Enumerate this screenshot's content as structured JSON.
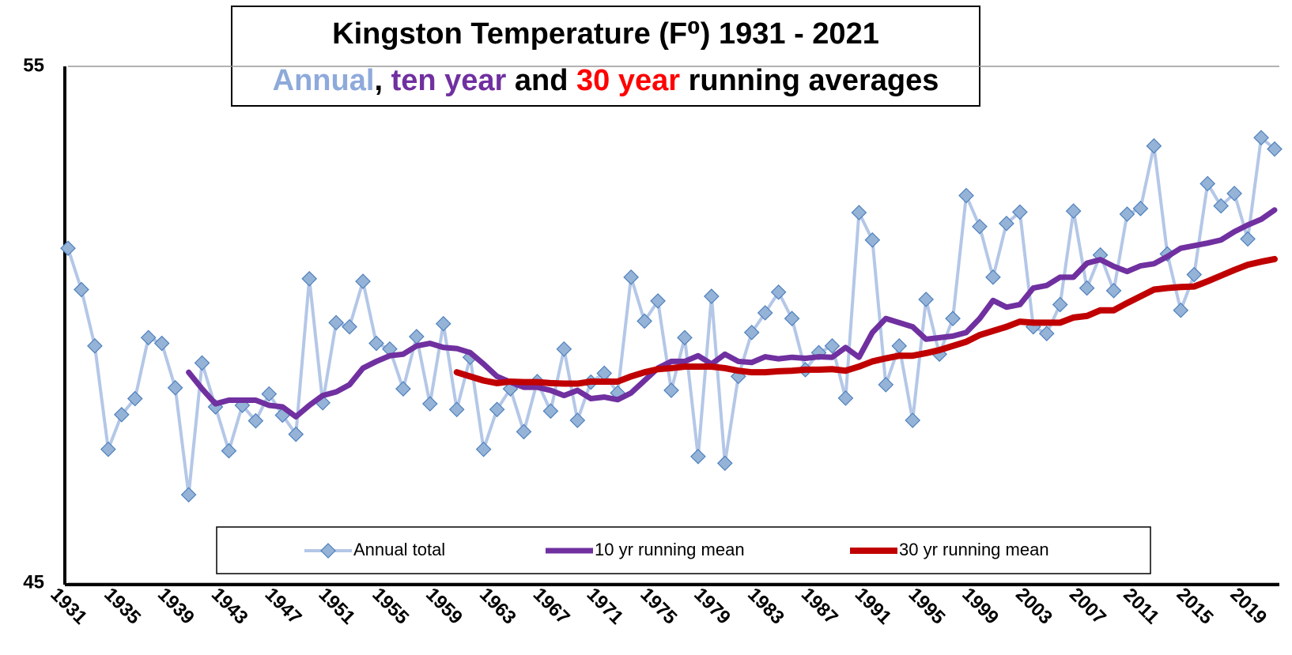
{
  "chart_data": {
    "type": "line",
    "title": "Kingston Temperature (F⁰) 1931 - 2021",
    "subtitle_parts": [
      {
        "text": "Annual",
        "color": "#8eaadb"
      },
      {
        "text": ", ",
        "color": "#000000"
      },
      {
        "text": "ten year",
        "color": "#7030a0"
      },
      {
        "text": " and ",
        "color": "#000000"
      },
      {
        "text": "30 year",
        "color": "#ff0000"
      },
      {
        "text": " running averages",
        "color": "#000000"
      }
    ],
    "x": [
      1931,
      1932,
      1933,
      1934,
      1935,
      1936,
      1937,
      1938,
      1939,
      1940,
      1941,
      1942,
      1943,
      1944,
      1945,
      1946,
      1947,
      1948,
      1949,
      1950,
      1951,
      1952,
      1953,
      1954,
      1955,
      1956,
      1957,
      1958,
      1959,
      1960,
      1961,
      1962,
      1963,
      1964,
      1965,
      1966,
      1967,
      1968,
      1969,
      1970,
      1971,
      1972,
      1973,
      1974,
      1975,
      1976,
      1977,
      1978,
      1979,
      1980,
      1981,
      1982,
      1983,
      1984,
      1985,
      1986,
      1987,
      1988,
      1989,
      1990,
      1991,
      1992,
      1993,
      1994,
      1995,
      1996,
      1997,
      1998,
      1999,
      2000,
      2001,
      2002,
      2003,
      2004,
      2005,
      2006,
      2007,
      2008,
      2009,
      2010,
      2011,
      2012,
      2013,
      2014,
      2015,
      2016,
      2017,
      2018,
      2019,
      2020,
      2021
    ],
    "xlim": [
      1931,
      2021
    ],
    "xticks": [
      1931,
      1935,
      1939,
      1943,
      1947,
      1951,
      1955,
      1959,
      1963,
      1967,
      1971,
      1975,
      1979,
      1983,
      1987,
      1991,
      1995,
      1999,
      2003,
      2007,
      2011,
      2015,
      2019
    ],
    "ylim": [
      45,
      55
    ],
    "yticks": [
      45,
      55
    ],
    "grid": true,
    "series": [
      {
        "name": "Annual total",
        "color": "#b4c7e7",
        "marker_color": "#95b3d7",
        "marker": "diamond",
        "width": 4,
        "values": [
          51.48,
          50.68,
          49.59,
          47.59,
          48.26,
          48.57,
          49.75,
          49.64,
          48.78,
          46.71,
          49.26,
          48.41,
          47.56,
          48.44,
          48.14,
          48.66,
          48.25,
          47.88,
          50.89,
          48.49,
          50.04,
          49.96,
          50.84,
          49.64,
          49.53,
          48.76,
          49.77,
          48.47,
          50.02,
          48.36,
          49.37,
          47.59,
          48.36,
          48.76,
          47.93,
          48.9,
          48.33,
          49.53,
          48.15,
          48.89,
          49.06,
          48.68,
          50.92,
          50.07,
          50.46,
          48.73,
          49.75,
          47.45,
          50.55,
          47.32,
          49.0,
          49.85,
          50.23,
          50.63,
          50.12,
          49.13,
          49.46,
          49.59,
          48.58,
          52.17,
          51.64,
          48.84,
          49.59,
          48.15,
          50.49,
          49.43,
          50.12,
          52.5,
          51.9,
          50.92,
          51.96,
          52.18,
          49.96,
          49.83,
          50.39,
          52.2,
          50.71,
          51.35,
          50.66,
          52.14,
          52.25,
          53.46,
          51.37,
          50.28,
          50.97,
          52.73,
          52.3,
          52.54,
          51.66,
          53.62,
          53.4
        ]
      },
      {
        "name": "10 yr running mean",
        "color": "#7030a0",
        "width": 7,
        "values": [
          null,
          null,
          null,
          null,
          null,
          null,
          null,
          null,
          null,
          49.08,
          48.76,
          48.47,
          48.54,
          48.54,
          48.54,
          48.44,
          48.41,
          48.22,
          48.44,
          48.63,
          48.7,
          48.84,
          49.16,
          49.29,
          49.4,
          49.43,
          49.59,
          49.64,
          49.56,
          49.54,
          49.46,
          49.24,
          49.0,
          48.89,
          48.79,
          48.79,
          48.73,
          48.63,
          48.73,
          48.57,
          48.6,
          48.55,
          48.68,
          48.92,
          49.16,
          49.29,
          49.29,
          49.4,
          49.24,
          49.43,
          49.29,
          49.27,
          49.38,
          49.34,
          49.37,
          49.35,
          49.38,
          49.37,
          49.56,
          49.37,
          49.85,
          50.12,
          50.04,
          49.96,
          49.72,
          49.75,
          49.78,
          49.85,
          50.12,
          50.47,
          50.34,
          50.39,
          50.71,
          50.76,
          50.92,
          50.92,
          51.19,
          51.26,
          51.13,
          51.03,
          51.14,
          51.18,
          51.32,
          51.48,
          51.53,
          51.58,
          51.64,
          51.8,
          51.93,
          52.04,
          52.22
        ]
      },
      {
        "name": "30 yr running mean",
        "color": "#c00000",
        "width": 8,
        "values": [
          null,
          null,
          null,
          null,
          null,
          null,
          null,
          null,
          null,
          null,
          null,
          null,
          null,
          null,
          null,
          null,
          null,
          null,
          null,
          null,
          null,
          null,
          null,
          null,
          null,
          null,
          null,
          null,
          null,
          49.08,
          49.0,
          48.92,
          48.87,
          48.9,
          48.89,
          48.89,
          48.87,
          48.86,
          48.86,
          48.9,
          48.9,
          48.9,
          49.0,
          49.08,
          49.14,
          49.16,
          49.19,
          49.19,
          49.19,
          49.16,
          49.11,
          49.08,
          49.08,
          49.1,
          49.11,
          49.13,
          49.13,
          49.14,
          49.11,
          49.19,
          49.29,
          49.35,
          49.4,
          49.4,
          49.45,
          49.51,
          49.59,
          49.67,
          49.8,
          49.88,
          49.96,
          50.06,
          50.04,
          50.04,
          50.04,
          50.14,
          50.17,
          50.28,
          50.28,
          50.42,
          50.55,
          50.68,
          50.71,
          50.73,
          50.74,
          50.84,
          50.95,
          51.06,
          51.16,
          51.22,
          51.27
        ]
      }
    ]
  }
}
